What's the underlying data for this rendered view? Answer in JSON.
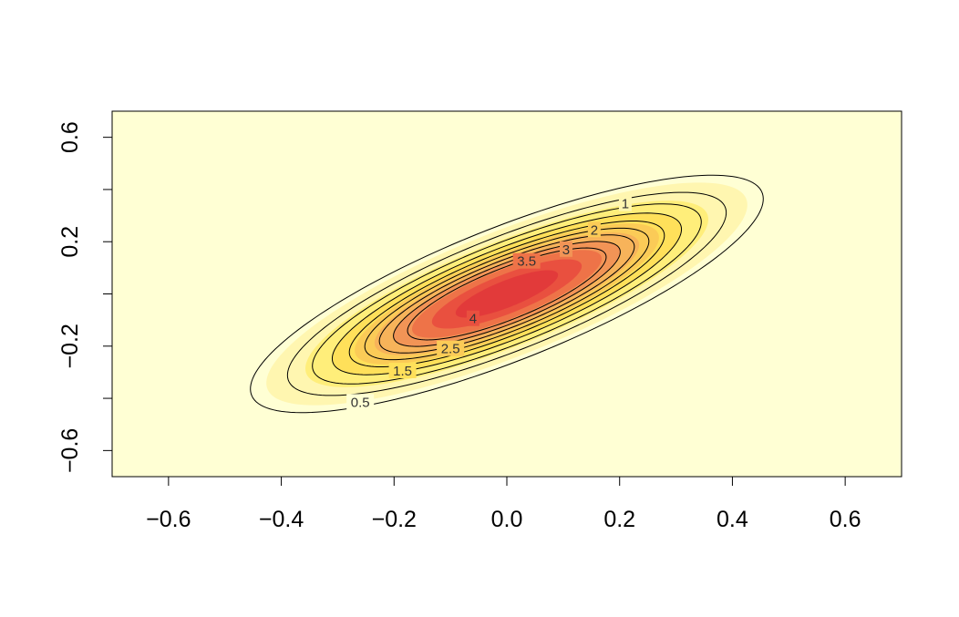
{
  "chart_data": {
    "type": "heatmap",
    "subtype": "bivariate-density-with-contours",
    "title": "",
    "xlabel": "",
    "ylabel": "",
    "xlim": [
      -0.7,
      0.7
    ],
    "ylim": [
      -0.7,
      0.7
    ],
    "x_ticks": [
      -0.6,
      -0.4,
      -0.2,
      0.0,
      0.2,
      0.4,
      0.6
    ],
    "x_tick_labels": [
      "−0.6",
      "−0.4",
      "−0.2",
      "0.0",
      "0.2",
      "0.4",
      "0.6"
    ],
    "y_ticks": [
      -0.6,
      -0.4,
      -0.2,
      0.0,
      0.2,
      0.4,
      0.6
    ],
    "y_tick_labels": [
      "−0.6",
      "",
      "−0.2",
      "",
      "0.2",
      "",
      "0.6"
    ],
    "density": {
      "distribution": "bivariate-normal",
      "mean": [
        0.0,
        0.0
      ],
      "sd_x": 0.2,
      "sd_y": 0.2,
      "correlation": 0.8,
      "peak": 4.95
    },
    "contour_levels": [
      0.5,
      1,
      1.5,
      2,
      2.5,
      3,
      3.5,
      4,
      4.5
    ],
    "contour_labels": [
      {
        "level": 0.5,
        "text": "0.5",
        "x": -0.26,
        "y": -0.415
      },
      {
        "level": 1,
        "text": "1",
        "x": 0.21,
        "y": 0.345
      },
      {
        "level": 1.5,
        "text": "1.5",
        "x": -0.185,
        "y": -0.295
      },
      {
        "level": 2,
        "text": "2",
        "x": 0.155,
        "y": 0.245
      },
      {
        "level": 2.5,
        "text": "2.5",
        "x": -0.1,
        "y": -0.21
      },
      {
        "level": 3,
        "text": "3",
        "x": 0.105,
        "y": 0.17
      },
      {
        "level": 3.5,
        "text": "3.5",
        "x": 0.035,
        "y": 0.125
      },
      {
        "level": 4,
        "text": "4",
        "x": -0.06,
        "y": -0.095
      }
    ],
    "colors": {
      "palette": [
        "#ffffd4",
        "#fff6b0",
        "#ffee7a",
        "#ffe05a",
        "#fbcb57",
        "#f7b35a",
        "#f29456",
        "#ee7348",
        "#e9503f",
        "#e23a3a"
      ],
      "contour_line": "#000000",
      "frame": "#000000"
    },
    "grid": false,
    "legend": "none"
  }
}
